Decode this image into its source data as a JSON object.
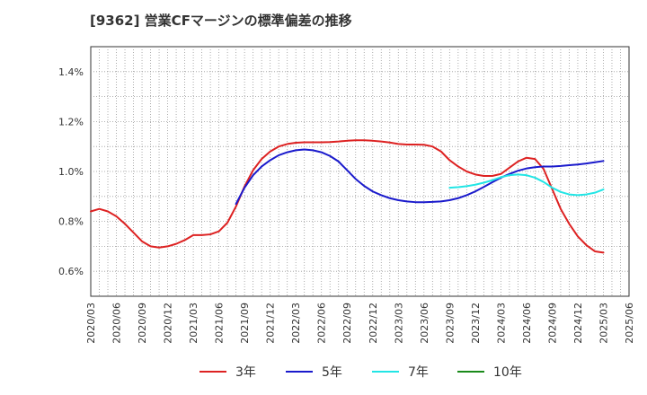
{
  "chart_data": {
    "type": "line",
    "title": "[9362]  営業CFマージンの標準偏差の推移",
    "xlabel": "",
    "ylabel": "",
    "x_ticks": [
      "2020/03",
      "2020/06",
      "2020/09",
      "2020/12",
      "2021/03",
      "2021/06",
      "2021/09",
      "2021/12",
      "2022/03",
      "2022/06",
      "2022/09",
      "2022/12",
      "2023/03",
      "2023/06",
      "2023/09",
      "2023/12",
      "2024/03",
      "2024/06",
      "2024/09",
      "2024/12",
      "2025/03",
      "2025/06"
    ],
    "y_ticks": [
      "0.6%",
      "0.8%",
      "1.0%",
      "1.2%",
      "1.4%"
    ],
    "y_tick_values": [
      0.6,
      0.8,
      1.0,
      1.2,
      1.4
    ],
    "ylim": [
      0.5,
      1.5
    ],
    "grid": true,
    "legend_position": "bottom",
    "series": [
      {
        "name": "3年",
        "color": "#dd2222",
        "points": [
          [
            "2020/03",
            0.84
          ],
          [
            "2020/04",
            0.85
          ],
          [
            "2020/05",
            0.84
          ],
          [
            "2020/06",
            0.82
          ],
          [
            "2020/07",
            0.79
          ],
          [
            "2020/08",
            0.755
          ],
          [
            "2020/09",
            0.72
          ],
          [
            "2020/10",
            0.7
          ],
          [
            "2020/11",
            0.695
          ],
          [
            "2020/12",
            0.7
          ],
          [
            "2021/01",
            0.71
          ],
          [
            "2021/02",
            0.725
          ],
          [
            "2021/03",
            0.745
          ],
          [
            "2021/04",
            0.745
          ],
          [
            "2021/05",
            0.748
          ],
          [
            "2021/06",
            0.76
          ],
          [
            "2021/07",
            0.795
          ],
          [
            "2021/08",
            0.86
          ],
          [
            "2021/09",
            0.94
          ],
          [
            "2021/10",
            1.005
          ],
          [
            "2021/11",
            1.05
          ],
          [
            "2021/12",
            1.08
          ],
          [
            "2022/01",
            1.1
          ],
          [
            "2022/02",
            1.11
          ],
          [
            "2022/03",
            1.115
          ],
          [
            "2022/04",
            1.117
          ],
          [
            "2022/05",
            1.117
          ],
          [
            "2022/06",
            1.117
          ],
          [
            "2022/07",
            1.118
          ],
          [
            "2022/08",
            1.12
          ],
          [
            "2022/09",
            1.123
          ],
          [
            "2022/10",
            1.125
          ],
          [
            "2022/11",
            1.125
          ],
          [
            "2022/12",
            1.123
          ],
          [
            "2023/01",
            1.12
          ],
          [
            "2023/02",
            1.116
          ],
          [
            "2023/03",
            1.11
          ],
          [
            "2023/04",
            1.108
          ],
          [
            "2023/05",
            1.108
          ],
          [
            "2023/06",
            1.107
          ],
          [
            "2023/07",
            1.1
          ],
          [
            "2023/08",
            1.08
          ],
          [
            "2023/09",
            1.045
          ],
          [
            "2023/10",
            1.02
          ],
          [
            "2023/11",
            1.0
          ],
          [
            "2023/12",
            0.988
          ],
          [
            "2024/01",
            0.982
          ],
          [
            "2024/02",
            0.982
          ],
          [
            "2024/03",
            0.99
          ],
          [
            "2024/04",
            1.015
          ],
          [
            "2024/05",
            1.04
          ],
          [
            "2024/06",
            1.055
          ],
          [
            "2024/07",
            1.05
          ],
          [
            "2024/08",
            1.01
          ],
          [
            "2024/09",
            0.93
          ],
          [
            "2024/10",
            0.85
          ],
          [
            "2024/11",
            0.79
          ],
          [
            "2024/12",
            0.74
          ],
          [
            "2025/01",
            0.705
          ],
          [
            "2025/02",
            0.68
          ],
          [
            "2025/03",
            0.675
          ]
        ]
      },
      {
        "name": "5年",
        "color": "#1a1acc",
        "points": [
          [
            "2021/08",
            0.87
          ],
          [
            "2021/09",
            0.935
          ],
          [
            "2021/10",
            0.985
          ],
          [
            "2021/11",
            1.02
          ],
          [
            "2021/12",
            1.045
          ],
          [
            "2022/01",
            1.065
          ],
          [
            "2022/02",
            1.077
          ],
          [
            "2022/03",
            1.085
          ],
          [
            "2022/04",
            1.088
          ],
          [
            "2022/05",
            1.085
          ],
          [
            "2022/06",
            1.077
          ],
          [
            "2022/07",
            1.062
          ],
          [
            "2022/08",
            1.04
          ],
          [
            "2022/09",
            1.005
          ],
          [
            "2022/10",
            0.97
          ],
          [
            "2022/11",
            0.942
          ],
          [
            "2022/12",
            0.92
          ],
          [
            "2023/01",
            0.905
          ],
          [
            "2023/02",
            0.893
          ],
          [
            "2023/03",
            0.885
          ],
          [
            "2023/04",
            0.88
          ],
          [
            "2023/05",
            0.877
          ],
          [
            "2023/06",
            0.877
          ],
          [
            "2023/07",
            0.878
          ],
          [
            "2023/08",
            0.88
          ],
          [
            "2023/09",
            0.885
          ],
          [
            "2023/10",
            0.893
          ],
          [
            "2023/11",
            0.905
          ],
          [
            "2023/12",
            0.92
          ],
          [
            "2024/01",
            0.938
          ],
          [
            "2024/02",
            0.957
          ],
          [
            "2024/03",
            0.975
          ],
          [
            "2024/04",
            0.99
          ],
          [
            "2024/05",
            1.003
          ],
          [
            "2024/06",
            1.012
          ],
          [
            "2024/07",
            1.017
          ],
          [
            "2024/08",
            1.02
          ],
          [
            "2024/09",
            1.02
          ],
          [
            "2024/10",
            1.022
          ],
          [
            "2024/11",
            1.025
          ],
          [
            "2024/12",
            1.028
          ],
          [
            "2025/01",
            1.032
          ],
          [
            "2025/02",
            1.037
          ],
          [
            "2025/03",
            1.042
          ]
        ]
      },
      {
        "name": "7年",
        "color": "#22e5e5",
        "points": [
          [
            "2023/09",
            0.935
          ],
          [
            "2023/10",
            0.937
          ],
          [
            "2023/11",
            0.941
          ],
          [
            "2023/12",
            0.947
          ],
          [
            "2024/01",
            0.955
          ],
          [
            "2024/02",
            0.965
          ],
          [
            "2024/03",
            0.977
          ],
          [
            "2024/04",
            0.985
          ],
          [
            "2024/05",
            0.988
          ],
          [
            "2024/06",
            0.985
          ],
          [
            "2024/07",
            0.975
          ],
          [
            "2024/08",
            0.958
          ],
          [
            "2024/09",
            0.935
          ],
          [
            "2024/10",
            0.918
          ],
          [
            "2024/11",
            0.908
          ],
          [
            "2024/12",
            0.905
          ],
          [
            "2025/01",
            0.908
          ],
          [
            "2025/02",
            0.915
          ],
          [
            "2025/03",
            0.928
          ]
        ]
      },
      {
        "name": "10年",
        "color": "#1a8a1a",
        "points": []
      }
    ]
  }
}
